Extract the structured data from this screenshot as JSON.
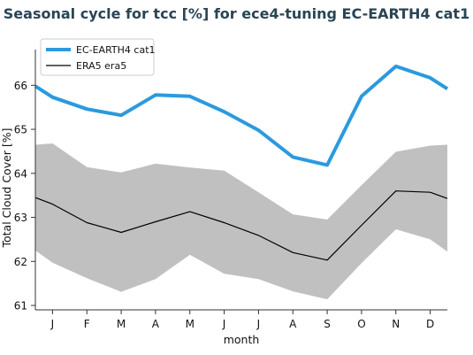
{
  "chart_data": {
    "type": "line",
    "title": "Seasonal cycle for tcc [%] for ece4-tuning EC-EARTH4 cat1",
    "xlabel": "month",
    "ylabel": "Total Cloud Cover [%]",
    "categories": [
      "J",
      "F",
      "M",
      "A",
      "M",
      "J",
      "J",
      "A",
      "S",
      "O",
      "N",
      "D"
    ],
    "x_range": [
      0.0,
      12.0
    ],
    "ylim": [
      60.9,
      66.65
    ],
    "y_ticks": [
      61,
      62,
      63,
      64,
      65,
      66
    ],
    "grid": false,
    "legend_position": "top-left",
    "series": [
      {
        "name": "EC-EARTH4 cat1",
        "color": "#2b9ade",
        "x": [
          0.0,
          0.5,
          1.5,
          2.5,
          3.5,
          4.5,
          5.5,
          6.5,
          7.5,
          8.5,
          9.5,
          10.5,
          11.5,
          12.0
        ],
        "values": [
          65.98,
          65.73,
          65.46,
          65.32,
          65.78,
          65.75,
          65.4,
          64.98,
          64.37,
          64.19,
          65.75,
          66.43,
          66.17,
          65.92
        ]
      },
      {
        "name": "ERA5 era5",
        "color": "#000000",
        "x": [
          0.0,
          0.5,
          1.5,
          2.5,
          3.5,
          4.5,
          5.5,
          6.5,
          7.5,
          8.5,
          9.5,
          10.5,
          11.5,
          12.0
        ],
        "values": [
          63.45,
          63.3,
          62.88,
          62.66,
          62.9,
          63.13,
          62.88,
          62.59,
          62.2,
          62.03,
          62.82,
          63.6,
          63.57,
          63.43
        ]
      }
    ],
    "band": {
      "color": "#c0c0c0",
      "x": [
        0.0,
        0.5,
        1.5,
        2.5,
        3.5,
        4.5,
        5.5,
        6.5,
        7.5,
        8.5,
        9.5,
        10.5,
        11.5,
        12.0
      ],
      "upper": [
        64.65,
        64.68,
        64.14,
        64.02,
        64.22,
        64.13,
        64.06,
        63.57,
        63.07,
        62.95,
        63.73,
        64.49,
        64.63,
        64.65
      ],
      "lower": [
        62.25,
        61.97,
        61.62,
        61.31,
        61.6,
        62.15,
        61.72,
        61.6,
        61.32,
        61.14,
        61.96,
        62.73,
        62.5,
        62.22
      ]
    }
  }
}
